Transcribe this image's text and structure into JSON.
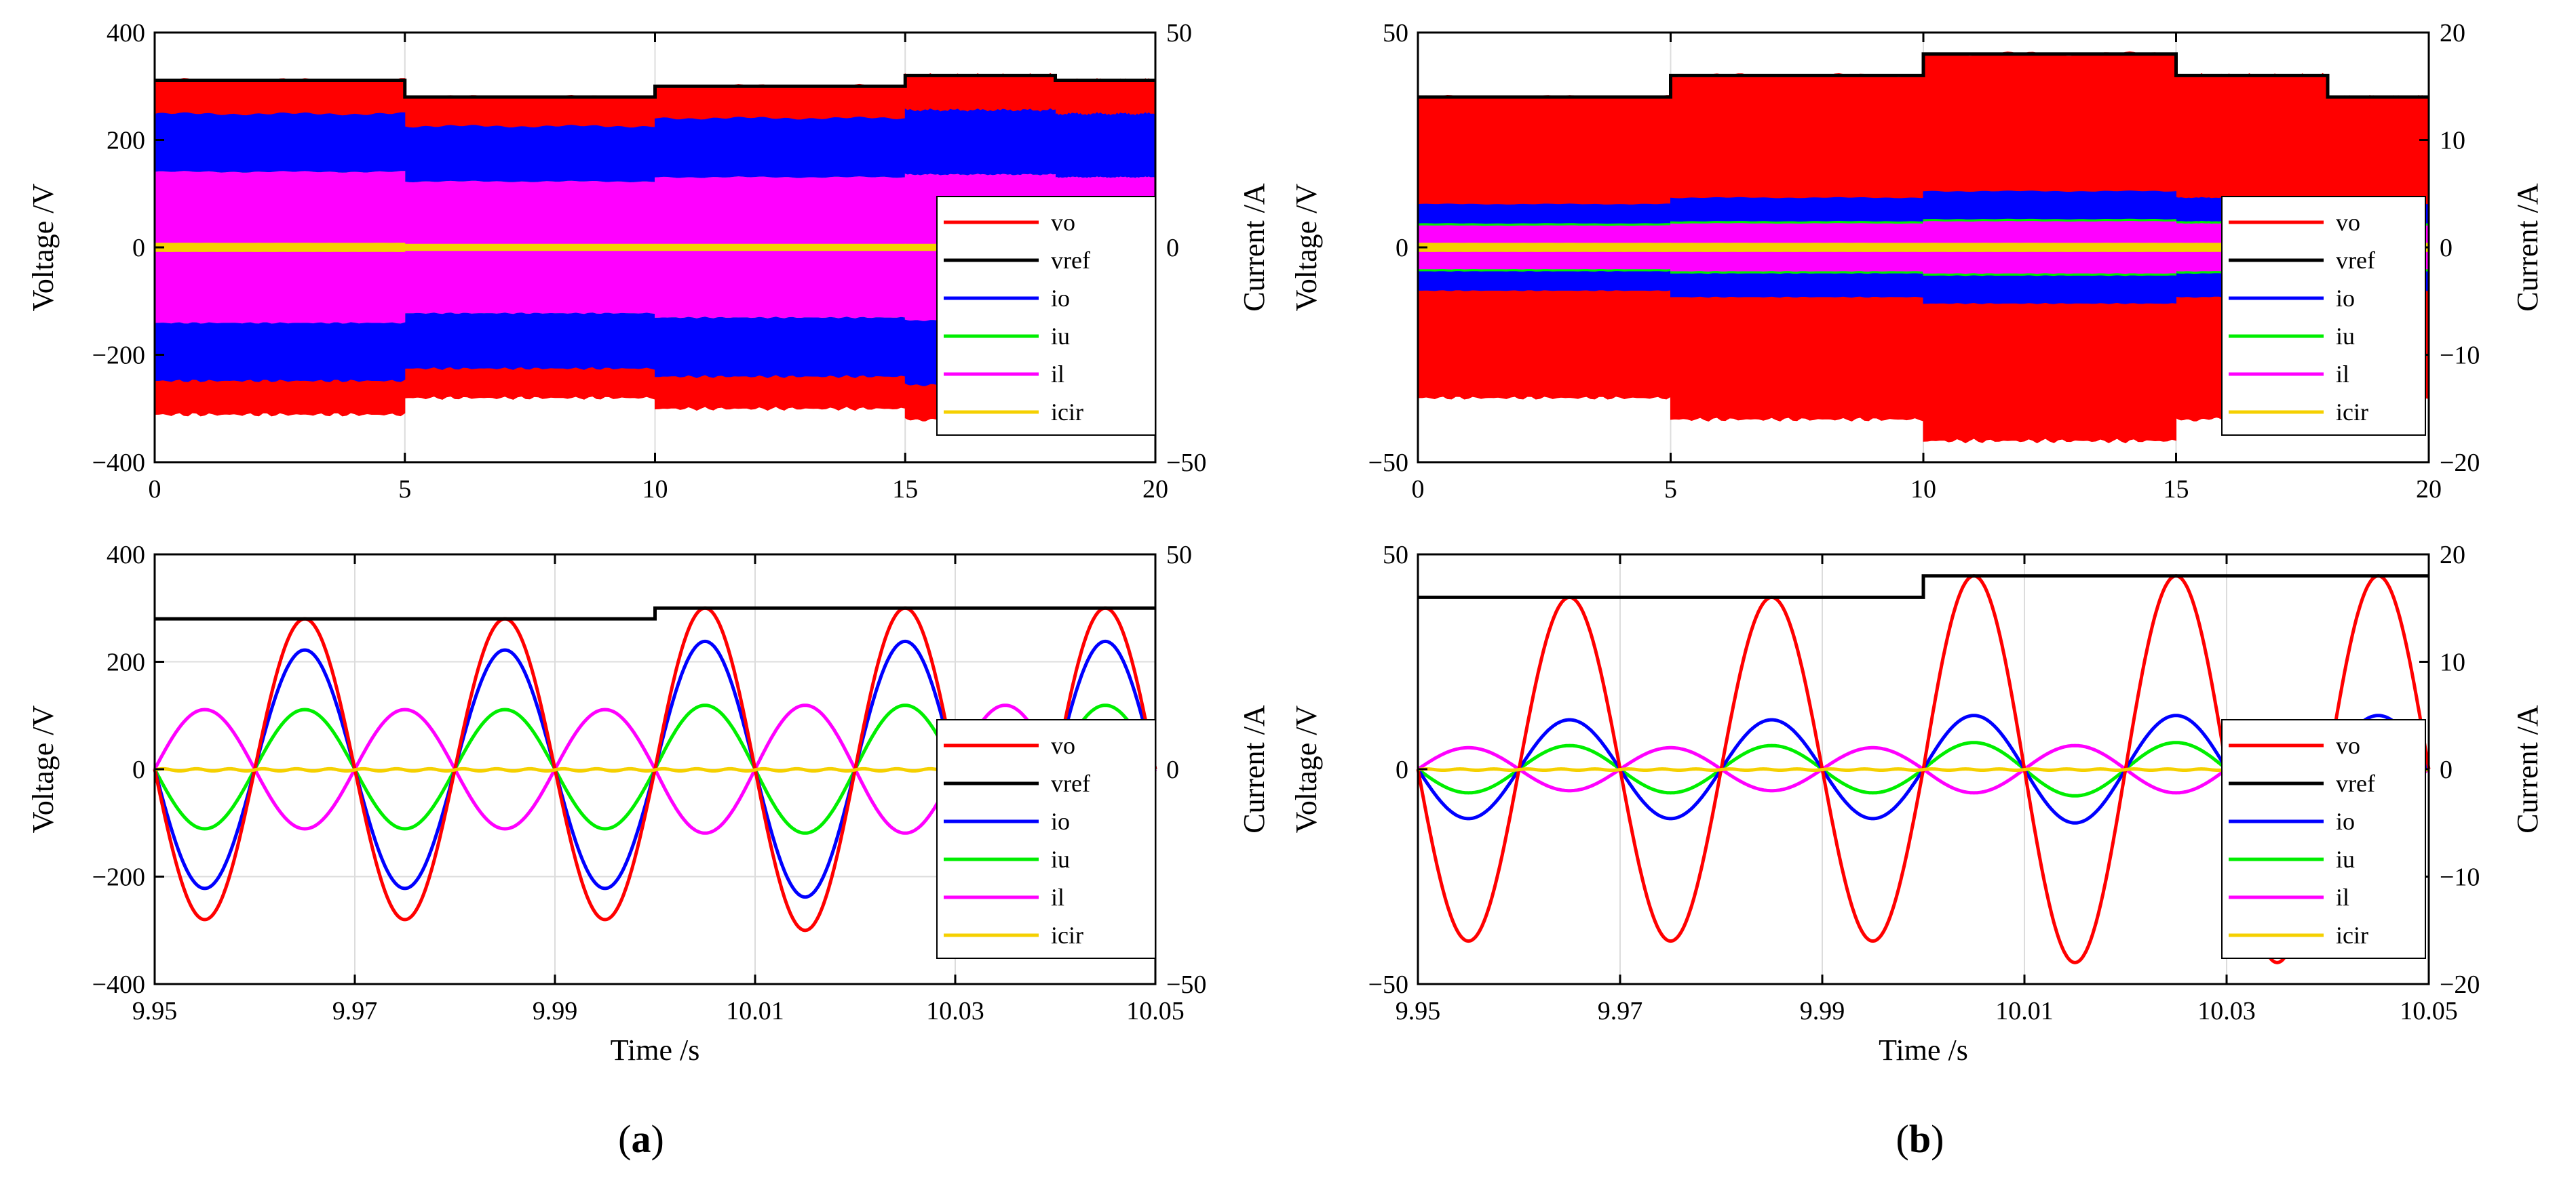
{
  "legend_labels": [
    "vo",
    "vref",
    "io",
    "iu",
    "il",
    "icir"
  ],
  "series_colors": {
    "vo": "#ff0000",
    "vref": "#000000",
    "io": "#0000ff",
    "iu": "#00ee00",
    "il": "#ff00ff",
    "icir": "#f5d000"
  },
  "panels": [
    {
      "caption_letter": "a",
      "caption_open": "(",
      "caption_close": ")",
      "chart_data": [
        {
          "type": "line",
          "kind": "full",
          "title": "",
          "xlabel": "",
          "ylabel": "Voltage /V",
          "ylabel2": "Current /A",
          "xlim": [
            0,
            20
          ],
          "ylim": [
            -400,
            400
          ],
          "y2lim": [
            -50,
            50
          ],
          "xticks": [
            0,
            5,
            10,
            15,
            20
          ],
          "xtick_labels": [
            "0",
            "5",
            "10",
            "15",
            "20"
          ],
          "yticks": [
            400,
            200,
            0,
            -200,
            -400
          ],
          "ytick_labels": [
            "400",
            "200",
            "0",
            "−200",
            "−400"
          ],
          "y2ticks": [
            50,
            0,
            -50
          ],
          "y2tick_labels": [
            "50",
            "0",
            "−50"
          ],
          "grid": true,
          "legend_position": "right",
          "segments": [
            {
              "t0": 0,
              "t1": 5,
              "vref": 311,
              "io_v": 248,
              "il_v": 140,
              "icir_v": 8
            },
            {
              "t0": 5,
              "t1": 10,
              "vref": 280,
              "io_v": 225,
              "il_v": 122,
              "icir_v": 6
            },
            {
              "t0": 10,
              "t1": 15,
              "vref": 300,
              "io_v": 240,
              "il_v": 130,
              "icir_v": 6
            },
            {
              "t0": 15,
              "t1": 18,
              "vref": 320,
              "io_v": 255,
              "il_v": 135,
              "icir_v": 6
            },
            {
              "t0": 18,
              "t1": 20,
              "vref": 311,
              "io_v": 248,
              "il_v": 130,
              "icir_v": 6
            }
          ]
        },
        {
          "type": "line",
          "kind": "zoom",
          "title": "",
          "xlabel": "Time /s",
          "ylabel": "Voltage /V",
          "ylabel2": "Current /A",
          "xlim": [
            9.95,
            10.05
          ],
          "ylim": [
            -400,
            400
          ],
          "y2lim": [
            -50,
            50
          ],
          "xticks": [
            9.95,
            9.97,
            9.99,
            10.01,
            10.03,
            10.05
          ],
          "xtick_labels": [
            "9.95",
            "9.97",
            "9.99",
            "10.01",
            "10.03",
            "10.05"
          ],
          "yticks": [
            400,
            200,
            0,
            -200,
            -400
          ],
          "ytick_labels": [
            "400",
            "200",
            "0",
            "−200",
            "−400"
          ],
          "y2ticks": [
            50,
            0,
            -50
          ],
          "y2tick_labels": [
            "50",
            "0",
            "−50"
          ],
          "grid": true,
          "legend_position": "right",
          "frequency_hz": 50,
          "step_time": 10.0,
          "amplitudes_before": {
            "vref": 280,
            "vo": 280,
            "io": 222,
            "iu": 111,
            "il": -111,
            "icir": 4
          },
          "amplitudes_after": {
            "vref": 300,
            "vo": 300,
            "io": 238,
            "iu": 119,
            "il": -119,
            "icir": 4
          }
        }
      ]
    },
    {
      "caption_letter": "b",
      "caption_open": "(",
      "caption_close": ")",
      "chart_data": [
        {
          "type": "line",
          "kind": "full",
          "title": "",
          "xlabel": "",
          "ylabel": "Voltage /V",
          "ylabel2": "Current /A",
          "xlim": [
            0,
            20
          ],
          "ylim": [
            -50,
            50
          ],
          "y2lim": [
            -20,
            20
          ],
          "xticks": [
            0,
            5,
            10,
            15,
            20
          ],
          "xtick_labels": [
            "0",
            "5",
            "10",
            "15",
            "20"
          ],
          "yticks": [
            50,
            0,
            -50
          ],
          "ytick_labels": [
            "50",
            "0",
            "−50"
          ],
          "y2ticks": [
            20,
            10,
            0,
            -10,
            -20
          ],
          "y2tick_labels": [
            "20",
            "10",
            "0",
            "−10",
            "−20"
          ],
          "grid": true,
          "legend_position": "right",
          "segments": [
            {
              "t0": 0,
              "t1": 5,
              "vref": 35,
              "io_v": 10,
              "iu_v": 5.5,
              "il_v": 5,
              "icir_v": 1
            },
            {
              "t0": 5,
              "t1": 10,
              "vref": 40,
              "io_v": 11.5,
              "iu_v": 6,
              "il_v": 5.5,
              "icir_v": 1
            },
            {
              "t0": 10,
              "t1": 15,
              "vref": 45,
              "io_v": 13,
              "iu_v": 6.5,
              "il_v": 6,
              "icir_v": 1
            },
            {
              "t0": 15,
              "t1": 18,
              "vref": 40,
              "io_v": 11.5,
              "iu_v": 6,
              "il_v": 5.5,
              "icir_v": 1
            },
            {
              "t0": 18,
              "t1": 20,
              "vref": 35,
              "io_v": 10,
              "iu_v": 5.5,
              "il_v": 5,
              "icir_v": 1
            }
          ]
        },
        {
          "type": "line",
          "kind": "zoom",
          "title": "",
          "xlabel": "Time /s",
          "ylabel": "Voltage /V",
          "ylabel2": "Current /A",
          "xlim": [
            9.95,
            10.05
          ],
          "ylim": [
            -50,
            50
          ],
          "y2lim": [
            -20,
            20
          ],
          "xticks": [
            9.95,
            9.97,
            9.99,
            10.01,
            10.03,
            10.05
          ],
          "xtick_labels": [
            "9.95",
            "9.97",
            "9.99",
            "10.01",
            "10.03",
            "10.05"
          ],
          "yticks": [
            50,
            0,
            -50
          ],
          "ytick_labels": [
            "50",
            "0",
            "−50"
          ],
          "y2ticks": [
            20,
            10,
            0,
            -10,
            -20
          ],
          "y2tick_labels": [
            "20",
            "10",
            "0",
            "−10",
            "−20"
          ],
          "grid": true,
          "legend_position": "right",
          "frequency_hz": 50,
          "step_time": 10.0,
          "amplitudes_before": {
            "vref": 40,
            "vo": 40,
            "io": 11.5,
            "iu": 5.5,
            "il": -5,
            "icir": 0.3
          },
          "amplitudes_after": {
            "vref": 45,
            "vo": 45,
            "io": 12.5,
            "iu": 6.2,
            "il": -5.5,
            "icir": 0.3
          }
        }
      ]
    }
  ]
}
